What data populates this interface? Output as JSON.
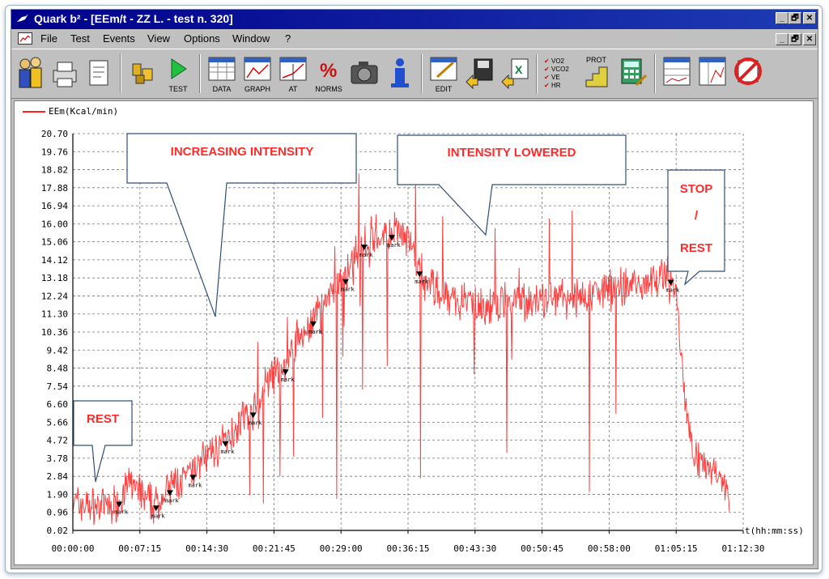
{
  "window": {
    "title": "Quark b² - [EEm/t - ZZ L. - test n. 320]",
    "controls": [
      "_",
      "🗗",
      "✕"
    ]
  },
  "menu": {
    "items": [
      "File",
      "Test",
      "Events",
      "View",
      "Options",
      "Window",
      "?"
    ],
    "doc_controls": [
      "_",
      "🗗",
      "✕"
    ]
  },
  "toolbar": {
    "buttons": [
      {
        "name": "patients-button",
        "label": "",
        "icon": "people-icon"
      },
      {
        "name": "print-button",
        "label": "",
        "icon": "printer-icon"
      },
      {
        "name": "report-button",
        "label": "",
        "icon": "document-icon"
      },
      {
        "name": "devices-button",
        "label": "",
        "icon": "devices-icon"
      },
      {
        "name": "test-button",
        "label": "TEST",
        "icon": "play-icon"
      },
      {
        "name": "data-button",
        "label": "DATA",
        "icon": "table-icon"
      },
      {
        "name": "graph-button",
        "label": "GRAPH",
        "icon": "graph-icon"
      },
      {
        "name": "at-button",
        "label": "AT",
        "icon": "at-graph-icon"
      },
      {
        "name": "norms-button",
        "label": "NORMS",
        "icon": "percent-icon"
      },
      {
        "name": "camera-button",
        "label": "",
        "icon": "camera-icon"
      },
      {
        "name": "info-button",
        "label": "",
        "icon": "info-icon"
      },
      {
        "name": "edit-button",
        "label": "EDIT",
        "icon": "edit-icon"
      },
      {
        "name": "export-button",
        "label": "",
        "icon": "save-icon"
      },
      {
        "name": "excel-button",
        "label": "",
        "icon": "excel-icon"
      },
      {
        "name": "parameters-button",
        "label": "",
        "icon": "checklist-icon"
      },
      {
        "name": "protocol-button",
        "label": "PROT",
        "icon": "protocol-icon"
      },
      {
        "name": "calculator-button",
        "label": "",
        "icon": "calculator-icon"
      },
      {
        "name": "layout1-button",
        "label": "",
        "icon": "layout-icon"
      },
      {
        "name": "layout2-button",
        "label": "",
        "icon": "layout-graph-icon"
      },
      {
        "name": "no-entry-button",
        "label": "",
        "icon": "prohibited-icon"
      }
    ],
    "checklist_lines": [
      "VO2",
      "VCO2",
      "VE",
      "HR"
    ]
  },
  "legend": {
    "label": "EEm(Kcal/min)",
    "color": "#ff2020"
  },
  "annotations": {
    "rest_start": "REST",
    "increasing": "INCREASING INTENSITY",
    "lowered": "INTENSITY LOWERED",
    "stop_line1": "STOP",
    "stop_line2": "/",
    "stop_line3": "REST",
    "mark_label": "mark"
  },
  "chart_data": {
    "type": "line",
    "series": [
      {
        "name": "EEm(Kcal/min)",
        "color": "#ff2020",
        "x": [
          "00:00:00",
          "00:02:00",
          "00:04:00",
          "00:05:00",
          "00:06:00",
          "00:07:00",
          "00:08:00",
          "00:09:00",
          "00:10:00",
          "00:11:00",
          "00:12:00",
          "00:13:00",
          "00:14:00",
          "00:15:00",
          "00:16:00",
          "00:17:00",
          "00:18:00",
          "00:19:00",
          "00:20:00",
          "00:21:00",
          "00:22:00",
          "00:23:00",
          "00:24:00",
          "00:25:00",
          "00:26:00",
          "00:27:00",
          "00:28:00",
          "00:29:00",
          "00:30:00",
          "00:31:00",
          "00:32:00",
          "00:33:00",
          "00:34:00",
          "00:35:00",
          "00:36:00",
          "00:37:00",
          "00:38:00",
          "00:39:00",
          "00:40:00",
          "00:42:00",
          "00:44:00",
          "00:46:00",
          "00:48:00",
          "00:50:00",
          "00:52:00",
          "00:54:00",
          "00:56:00",
          "00:58:00",
          "01:00:00",
          "01:02:00",
          "01:03:00",
          "01:04:00",
          "01:05:00",
          "01:05:30",
          "01:06:00",
          "01:06:30",
          "01:07:00",
          "01:08:00",
          "01:09:00",
          "01:10:00",
          "01:11:00"
        ],
        "values": [
          1.5,
          1.3,
          1.2,
          1.6,
          2.4,
          2.2,
          1.5,
          1.4,
          1.9,
          2.5,
          2.6,
          3.0,
          3.8,
          4.0,
          4.5,
          5.0,
          5.8,
          6.0,
          6.5,
          7.8,
          8.2,
          8.5,
          9.8,
          10.3,
          11.0,
          11.8,
          12.5,
          13.0,
          13.4,
          14.8,
          15.2,
          15.5,
          15.4,
          15.6,
          15.3,
          14.2,
          13.0,
          12.8,
          12.2,
          12.0,
          11.8,
          11.6,
          12.0,
          11.9,
          12.1,
          12.2,
          12.4,
          12.5,
          12.8,
          13.0,
          13.2,
          13.3,
          13.1,
          11.0,
          8.0,
          5.5,
          4.5,
          3.5,
          3.2,
          3.0,
          2.0
        ]
      }
    ],
    "xlabel": "t(hh:mm:ss)",
    "x_ticks": [
      "00:00:00",
      "00:07:15",
      "00:14:30",
      "00:21:45",
      "00:29:00",
      "00:36:15",
      "00:43:30",
      "00:50:45",
      "00:58:00",
      "01:05:15",
      "01:12:30"
    ],
    "y_ticks": [
      "0.02",
      "0.96",
      "1.90",
      "2.84",
      "3.78",
      "4.72",
      "5.66",
      "6.60",
      "7.54",
      "8.48",
      "9.42",
      "10.36",
      "11.30",
      "12.24",
      "13.18",
      "14.12",
      "15.06",
      "16.00",
      "16.94",
      "17.88",
      "18.82",
      "19.76",
      "20.70"
    ],
    "ylim": [
      0.02,
      20.7
    ],
    "xlim": [
      "00:00:00",
      "01:12:30"
    ],
    "grid": true,
    "legend_position": "top-left"
  }
}
